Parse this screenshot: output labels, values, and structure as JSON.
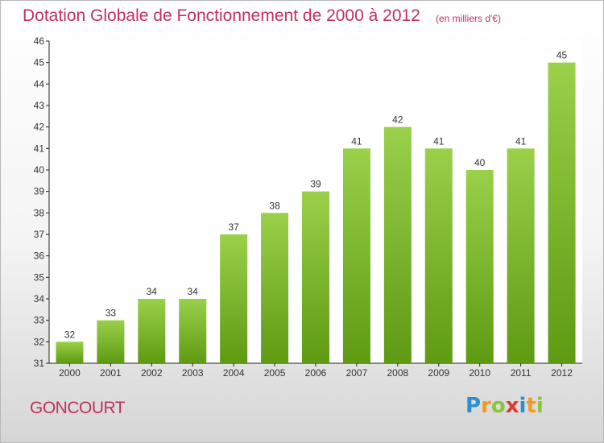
{
  "header": {
    "title": "Dotation Globale de Fonctionnement de 2000 à 2012",
    "subtitle": "(en milliers d'€)"
  },
  "footer": {
    "place": "GONCOURT",
    "logo": "Proxiti"
  },
  "colors": {
    "accent": "#c2305c",
    "bar_light": "#9ad04a",
    "bar_dark": "#5e9a12"
  },
  "chart_data": {
    "type": "bar",
    "title": "Dotation Globale de Fonctionnement de 2000 à 2012",
    "subtitle": "(en milliers d'€)",
    "categories": [
      "2000",
      "2001",
      "2002",
      "2003",
      "2004",
      "2005",
      "2006",
      "2007",
      "2008",
      "2009",
      "2010",
      "2011",
      "2012"
    ],
    "values": [
      32,
      33,
      34,
      34,
      37,
      38,
      39,
      41,
      42,
      41,
      40,
      41,
      45
    ],
    "data_labels": [
      "32",
      "33",
      "34",
      "34",
      "37",
      "38",
      "39",
      "41",
      "42",
      "41",
      "40",
      "41",
      "45"
    ],
    "yticks": [
      "31",
      "32",
      "33",
      "34",
      "35",
      "36",
      "37",
      "38",
      "39",
      "40",
      "41",
      "42",
      "43",
      "44",
      "45",
      "46"
    ],
    "ylim": [
      31,
      46
    ],
    "grid": false,
    "legend": "none"
  }
}
